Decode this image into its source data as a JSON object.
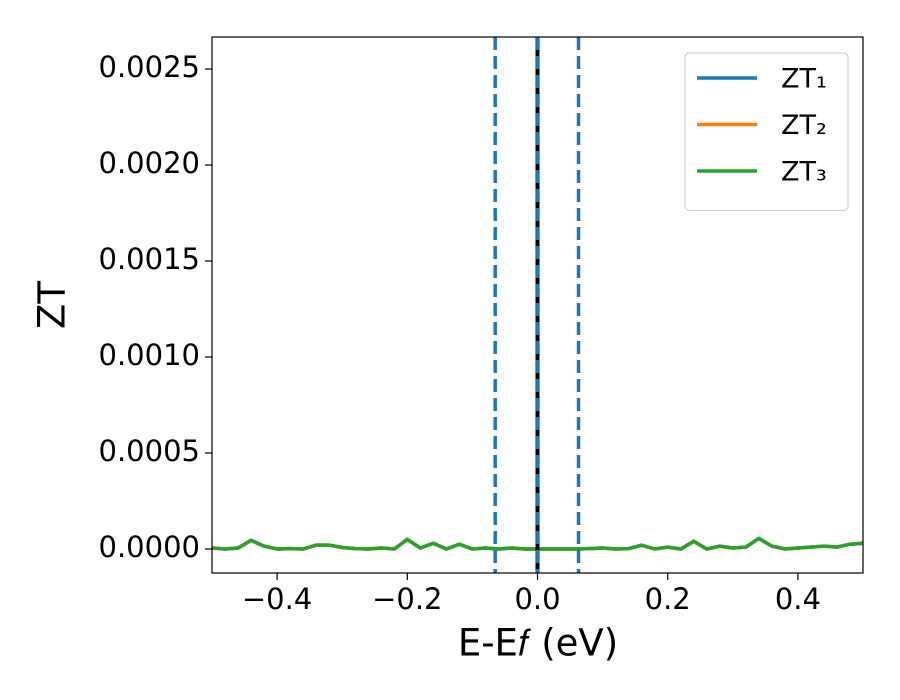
{
  "chart_data": {
    "type": "line",
    "xlabel": "E-E𝑓 (eV)",
    "ylabel": "ZT",
    "x": [
      -0.5,
      -0.48,
      -0.46,
      -0.44,
      -0.42,
      -0.4,
      -0.38,
      -0.36,
      -0.34,
      -0.32,
      -0.3,
      -0.28,
      -0.26,
      -0.24,
      -0.22,
      -0.2,
      -0.18,
      -0.16,
      -0.14,
      -0.12,
      -0.1,
      -0.08,
      -0.06,
      -0.04,
      -0.02,
      0,
      0.02,
      0.04,
      0.06,
      0.08,
      0.1,
      0.12,
      0.14,
      0.16,
      0.18,
      0.2,
      0.22,
      0.24,
      0.26,
      0.28,
      0.3,
      0.32,
      0.34,
      0.36,
      0.38,
      0.4,
      0.42,
      0.44,
      0.46,
      0.48,
      0.5
    ],
    "series": [
      {
        "name": "ZT₁",
        "color": "#1f77b4",
        "values": [
          5e-06,
          0,
          5e-06,
          4.5e-05,
          1.5e-05,
          0,
          2e-06,
          0,
          2e-05,
          2e-05,
          8e-06,
          2e-06,
          0,
          5e-06,
          0,
          5e-05,
          5e-06,
          3e-05,
          0,
          2.5e-05,
          0,
          5e-06,
          0,
          5e-06,
          0,
          0,
          0,
          0,
          0,
          2e-06,
          5e-06,
          0,
          2e-06,
          2e-05,
          0,
          1e-05,
          0,
          4e-05,
          0,
          1.5e-05,
          5e-06,
          1e-05,
          5.5e-05,
          1.5e-05,
          0,
          5e-06,
          1e-05,
          1.5e-05,
          1e-05,
          2.5e-05,
          3e-05
        ]
      },
      {
        "name": "ZT₂",
        "color": "#ff7f0e",
        "values": [
          5e-06,
          0,
          5e-06,
          4.5e-05,
          1.5e-05,
          0,
          2e-06,
          0,
          2e-05,
          2e-05,
          8e-06,
          2e-06,
          0,
          5e-06,
          0,
          5e-05,
          5e-06,
          3e-05,
          0,
          2.5e-05,
          0,
          5e-06,
          0,
          5e-06,
          0,
          0,
          0,
          0,
          0,
          2e-06,
          5e-06,
          0,
          2e-06,
          2e-05,
          0,
          1e-05,
          0,
          4e-05,
          0,
          1.5e-05,
          5e-06,
          1e-05,
          5.5e-05,
          1.5e-05,
          0,
          5e-06,
          1e-05,
          1.5e-05,
          1e-05,
          2.5e-05,
          3e-05
        ]
      },
      {
        "name": "ZT₃",
        "color": "#2ca02c",
        "values": [
          5e-06,
          0,
          5e-06,
          4.5e-05,
          1.5e-05,
          0,
          2e-06,
          0,
          2e-05,
          2e-05,
          8e-06,
          2e-06,
          0,
          5e-06,
          0,
          5e-05,
          5e-06,
          3e-05,
          0,
          2.5e-05,
          0,
          5e-06,
          0,
          5e-06,
          0,
          0,
          0,
          0,
          0,
          2e-06,
          5e-06,
          0,
          2e-06,
          2e-05,
          0,
          1e-05,
          0,
          4e-05,
          0,
          1.5e-05,
          5e-06,
          1e-05,
          5.5e-05,
          1.5e-05,
          0,
          5e-06,
          1e-05,
          1.5e-05,
          1e-05,
          2.5e-05,
          3e-05
        ]
      }
    ],
    "vlines": [
      {
        "x": 0,
        "color": "#000000",
        "style": "solid"
      },
      {
        "x": -0.065,
        "color": "#1f77b4",
        "style": "dashed"
      },
      {
        "x": 0,
        "color": "#1f77b4",
        "style": "dashed"
      },
      {
        "x": 0.063,
        "color": "#1f77b4",
        "style": "dashed"
      }
    ],
    "xlim": [
      -0.5,
      0.5
    ],
    "ylim": [
      -0.000125,
      0.002667
    ],
    "xticks": [
      {
        "value": -0.4,
        "label": "−0.4"
      },
      {
        "value": -0.2,
        "label": "−0.2"
      },
      {
        "value": 0,
        "label": "0.0"
      },
      {
        "value": 0.2,
        "label": "0.2"
      },
      {
        "value": 0.4,
        "label": "0.4"
      }
    ],
    "yticks": [
      {
        "value": 0,
        "label": "0.0000"
      },
      {
        "value": 0.0005,
        "label": "0.0005"
      },
      {
        "value": 0.001,
        "label": "0.0010"
      },
      {
        "value": 0.0015,
        "label": "0.0015"
      },
      {
        "value": 0.002,
        "label": "0.0020"
      },
      {
        "value": 0.0025,
        "label": "0.0025"
      }
    ],
    "grid": false,
    "legend": "upper right"
  }
}
